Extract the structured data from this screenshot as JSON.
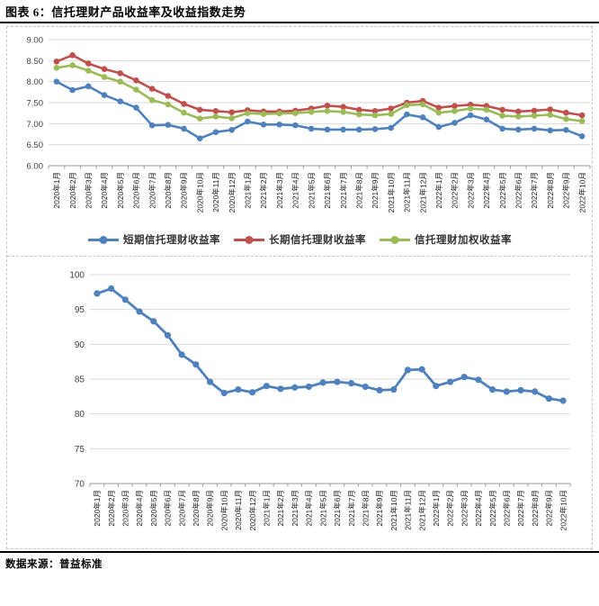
{
  "header": {
    "title": "图表 6：信托理财产品收益率及收益指数走势"
  },
  "footer": {
    "source": "数据来源：普益标准"
  },
  "chart_data": [
    {
      "type": "line",
      "title": "",
      "xlabel": "",
      "ylabel": "",
      "ylim": [
        6.0,
        9.0
      ],
      "ytick_values": [
        6.0,
        6.5,
        7.0,
        7.5,
        8.0,
        8.5,
        9.0
      ],
      "ytick_labels": [
        "6.00",
        "6.50",
        "7.00",
        "7.50",
        "8.00",
        "8.50",
        "9.00"
      ],
      "grid": true,
      "legend_position": "bottom",
      "categories": [
        "2020年1月",
        "2020年2月",
        "2020年3月",
        "2020年4月",
        "2020年5月",
        "2020年6月",
        "2020年7月",
        "2020年8月",
        "2020年9月",
        "2020年10月",
        "2020年11月",
        "2020年12月",
        "2021年1月",
        "2021年2月",
        "2021年3月",
        "2021年4月",
        "2021年5月",
        "2021年6月",
        "2021年7月",
        "2021年8月",
        "2021年9月",
        "2021年10月",
        "2021年11月",
        "2021年12月",
        "2022年1月",
        "2022年2月",
        "2022年3月",
        "2022年4月",
        "2022年5月",
        "2022年6月",
        "2022年7月",
        "2022年8月",
        "2022年9月",
        "2022年10月"
      ],
      "series": [
        {
          "name": "短期信托理财收益率",
          "color": "#4F81BD",
          "values": [
            8.0,
            7.8,
            7.89,
            7.68,
            7.53,
            7.38,
            6.96,
            6.97,
            6.88,
            6.65,
            6.8,
            6.85,
            7.05,
            6.98,
            6.98,
            6.96,
            6.88,
            6.86,
            6.86,
            6.86,
            6.87,
            6.9,
            7.22,
            7.15,
            6.92,
            7.02,
            7.2,
            7.1,
            6.88,
            6.86,
            6.88,
            6.84,
            6.85,
            6.7
          ]
        },
        {
          "name": "长期信托理财收益率",
          "color": "#C0504D",
          "values": [
            8.48,
            8.63,
            8.43,
            8.3,
            8.2,
            8.03,
            7.83,
            7.66,
            7.47,
            7.33,
            7.3,
            7.27,
            7.32,
            7.29,
            7.29,
            7.31,
            7.36,
            7.43,
            7.4,
            7.33,
            7.3,
            7.36,
            7.5,
            7.54,
            7.38,
            7.42,
            7.45,
            7.42,
            7.33,
            7.29,
            7.31,
            7.34,
            7.26,
            7.2
          ]
        },
        {
          "name": "信托理财加权收益率",
          "color": "#9BBB59",
          "values": [
            8.33,
            8.39,
            8.26,
            8.11,
            8.0,
            7.81,
            7.56,
            7.46,
            7.26,
            7.12,
            7.17,
            7.13,
            7.25,
            7.23,
            7.24,
            7.25,
            7.28,
            7.3,
            7.28,
            7.22,
            7.2,
            7.23,
            7.44,
            7.46,
            7.26,
            7.3,
            7.36,
            7.33,
            7.19,
            7.17,
            7.19,
            7.21,
            7.11,
            7.06
          ]
        }
      ]
    },
    {
      "type": "line",
      "title": "",
      "xlabel": "",
      "ylabel": "",
      "ylim": [
        70,
        100
      ],
      "ytick_values": [
        70,
        75,
        80,
        85,
        90,
        95,
        100
      ],
      "ytick_labels": [
        "70",
        "75",
        "80",
        "85",
        "90",
        "95",
        "100"
      ],
      "grid": true,
      "legend_position": "none",
      "categories": [
        "2020年1月",
        "2020年2月",
        "2020年3月",
        "2020年4月",
        "2020年5月",
        "2020年6月",
        "2020年7月",
        "2020年8月",
        "2020年9月",
        "2020年10月",
        "2020年11月",
        "2020年12月",
        "2021年1月",
        "2021年2月",
        "2021年3月",
        "2021年4月",
        "2021年5月",
        "2021年6月",
        "2021年7月",
        "2021年8月",
        "2021年9月",
        "2021年10月",
        "2021年11月",
        "2021年12月",
        "2022年1月",
        "2022年2月",
        "2022年3月",
        "2022年4月",
        "2022年5月",
        "2022年6月",
        "2022年7月",
        "2022年8月",
        "2022年9月",
        "2022年10月"
      ],
      "series": [
        {
          "color": "#4F81BD",
          "values": [
            97.3,
            98.0,
            96.4,
            94.7,
            93.3,
            91.3,
            88.5,
            87.1,
            84.6,
            83.0,
            83.5,
            83.1,
            84.0,
            83.6,
            83.8,
            83.9,
            84.5,
            84.6,
            84.4,
            83.9,
            83.4,
            83.5,
            86.3,
            86.4,
            84.0,
            84.6,
            85.3,
            84.9,
            83.5,
            83.2,
            83.4,
            83.2,
            82.2,
            81.9
          ]
        }
      ]
    }
  ]
}
